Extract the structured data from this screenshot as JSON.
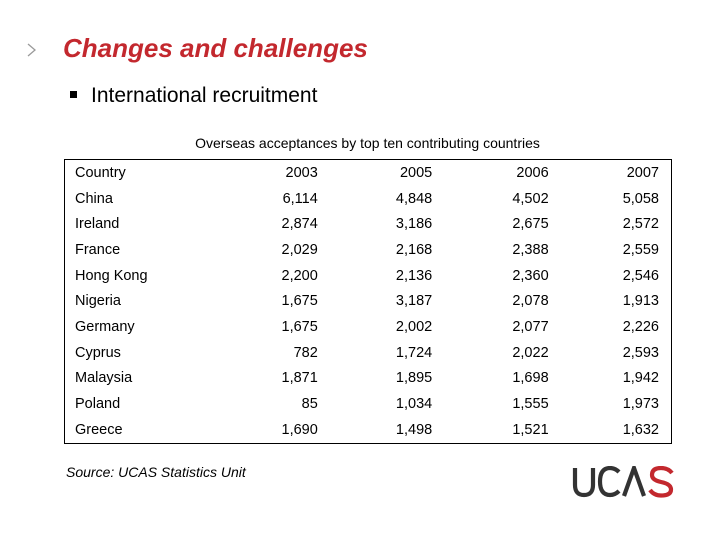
{
  "slide": {
    "title": "Changes and challenges",
    "bullet": "International recruitment",
    "caption": "Overseas acceptances by top ten contributing countries",
    "source": "Source: UCAS Statistics Unit",
    "logo_text": "UCAS",
    "accent_color": "#c3282e",
    "chevron_icon": "chevron-right-icon"
  },
  "table": {
    "headers": [
      "Country",
      "2003",
      "2005",
      "2006",
      "2007"
    ],
    "rows": [
      [
        "China",
        "6,114",
        "4,848",
        "4,502",
        "5,058"
      ],
      [
        "Ireland",
        "2,874",
        "3,186",
        "2,675",
        "2,572"
      ],
      [
        "France",
        "2,029",
        "2,168",
        "2,388",
        "2,559"
      ],
      [
        "Hong Kong",
        "2,200",
        "2,136",
        "2,360",
        "2,546"
      ],
      [
        "Nigeria",
        "1,675",
        "3,187",
        "2,078",
        "1,913"
      ],
      [
        "Germany",
        "1,675",
        "2,002",
        "2,077",
        "2,226"
      ],
      [
        "Cyprus",
        "782",
        "1,724",
        "2,022",
        "2,593"
      ],
      [
        "Malaysia",
        "1,871",
        "1,895",
        "1,698",
        "1,942"
      ],
      [
        "Poland",
        "85",
        "1,034",
        "1,555",
        "1,973"
      ],
      [
        "Greece",
        "1,690",
        "1,498",
        "1,521",
        "1,632"
      ]
    ]
  }
}
